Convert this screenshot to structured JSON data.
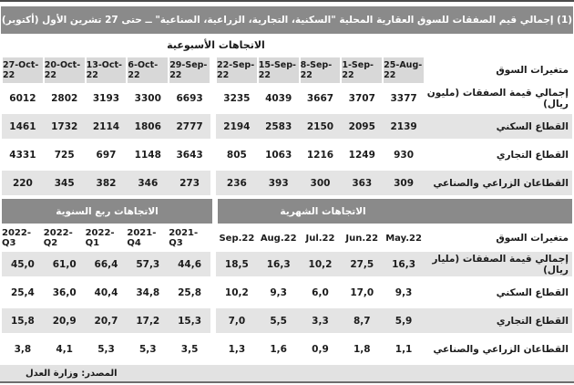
{
  "title": "جدول (1) إجمالي قيم الصفقات للسوق العقارية المحلية \"السكنية، التجارية، الزراعية، الصناعية\" ــ حتى 27 تشرين الأول (أكتوبر) 2022",
  "footer": {
    "source": "المصدر: وزارة العدل"
  },
  "colors": {
    "top_border": "#4a4a4a",
    "band_gray": "#8a8a8a",
    "header_cell_gray": "#d8d8d8",
    "stripe_gray": "#e4e4e4",
    "footer_gray": "#e2e2e2",
    "footer_border": "#6e6e6e",
    "text_dark": "#1c1c1c",
    "band_text": "#ffffff"
  },
  "chart_data": [
    {
      "type": "table",
      "section_title": "الاتجاهات الأسبوعية",
      "row_header": "متغيرات السوق",
      "columns": [
        "27-Oct-22",
        "20-Oct-22",
        "13-Oct-22",
        "6-Oct-22",
        "29-Sep-22",
        "22-Sep-22",
        "15-Sep-22",
        "8-Sep-22",
        "1-Sep-22",
        "25-Aug-22"
      ],
      "rows": [
        {
          "label": "إجمالي قيمة الصفقات (مليون ريال)",
          "values": [
            "6012",
            "2802",
            "3193",
            "3300",
            "6693",
            "3235",
            "4039",
            "3667",
            "3707",
            "3377"
          ]
        },
        {
          "label": "القطاع السكني",
          "values": [
            "1461",
            "1732",
            "2114",
            "1806",
            "2777",
            "2194",
            "2583",
            "2150",
            "2095",
            "2139"
          ]
        },
        {
          "label": "القطاع التجاري",
          "values": [
            "4331",
            "725",
            "697",
            "1148",
            "3643",
            "805",
            "1063",
            "1216",
            "1249",
            "930"
          ]
        },
        {
          "label": "القطاعان الزراعي والصناعي",
          "values": [
            "220",
            "345",
            "382",
            "346",
            "273",
            "236",
            "393",
            "300",
            "363",
            "309"
          ]
        }
      ]
    },
    {
      "type": "table",
      "section_title_quarterly": "الاتجاهات ربع السنوية",
      "section_title_monthly": "الاتجاهات الشهرية",
      "row_header": "متغيرات السوق",
      "columns": [
        "2022-Q3",
        "2022-Q2",
        "2022-Q1",
        "2021-Q4",
        "2021-Q3",
        "Sep.22",
        "Aug.22",
        "Jul.22",
        "Jun.22",
        "May.22"
      ],
      "rows": [
        {
          "label": "إجمالي قيمة الصفقات (مليار ريال)",
          "values": [
            "45,0",
            "61,0",
            "66,4",
            "57,3",
            "44,6",
            "18,5",
            "16,3",
            "10,2",
            "27,5",
            "16,3"
          ]
        },
        {
          "label": "القطاع السكني",
          "values": [
            "25,4",
            "36,0",
            "40,4",
            "34,8",
            "25,8",
            "10,2",
            "9,3",
            "6,0",
            "17,0",
            "9,3"
          ]
        },
        {
          "label": "القطاع التجاري",
          "values": [
            "15,8",
            "20,9",
            "20,7",
            "17,2",
            "15,3",
            "7,0",
            "5,5",
            "3,3",
            "8,7",
            "5,9"
          ]
        },
        {
          "label": "القطاعان الزراعي والصناعي",
          "values": [
            "3,8",
            "4,1",
            "5,3",
            "5,3",
            "3,5",
            "1,3",
            "1,6",
            "0,9",
            "1,8",
            "1,1"
          ]
        }
      ]
    }
  ]
}
